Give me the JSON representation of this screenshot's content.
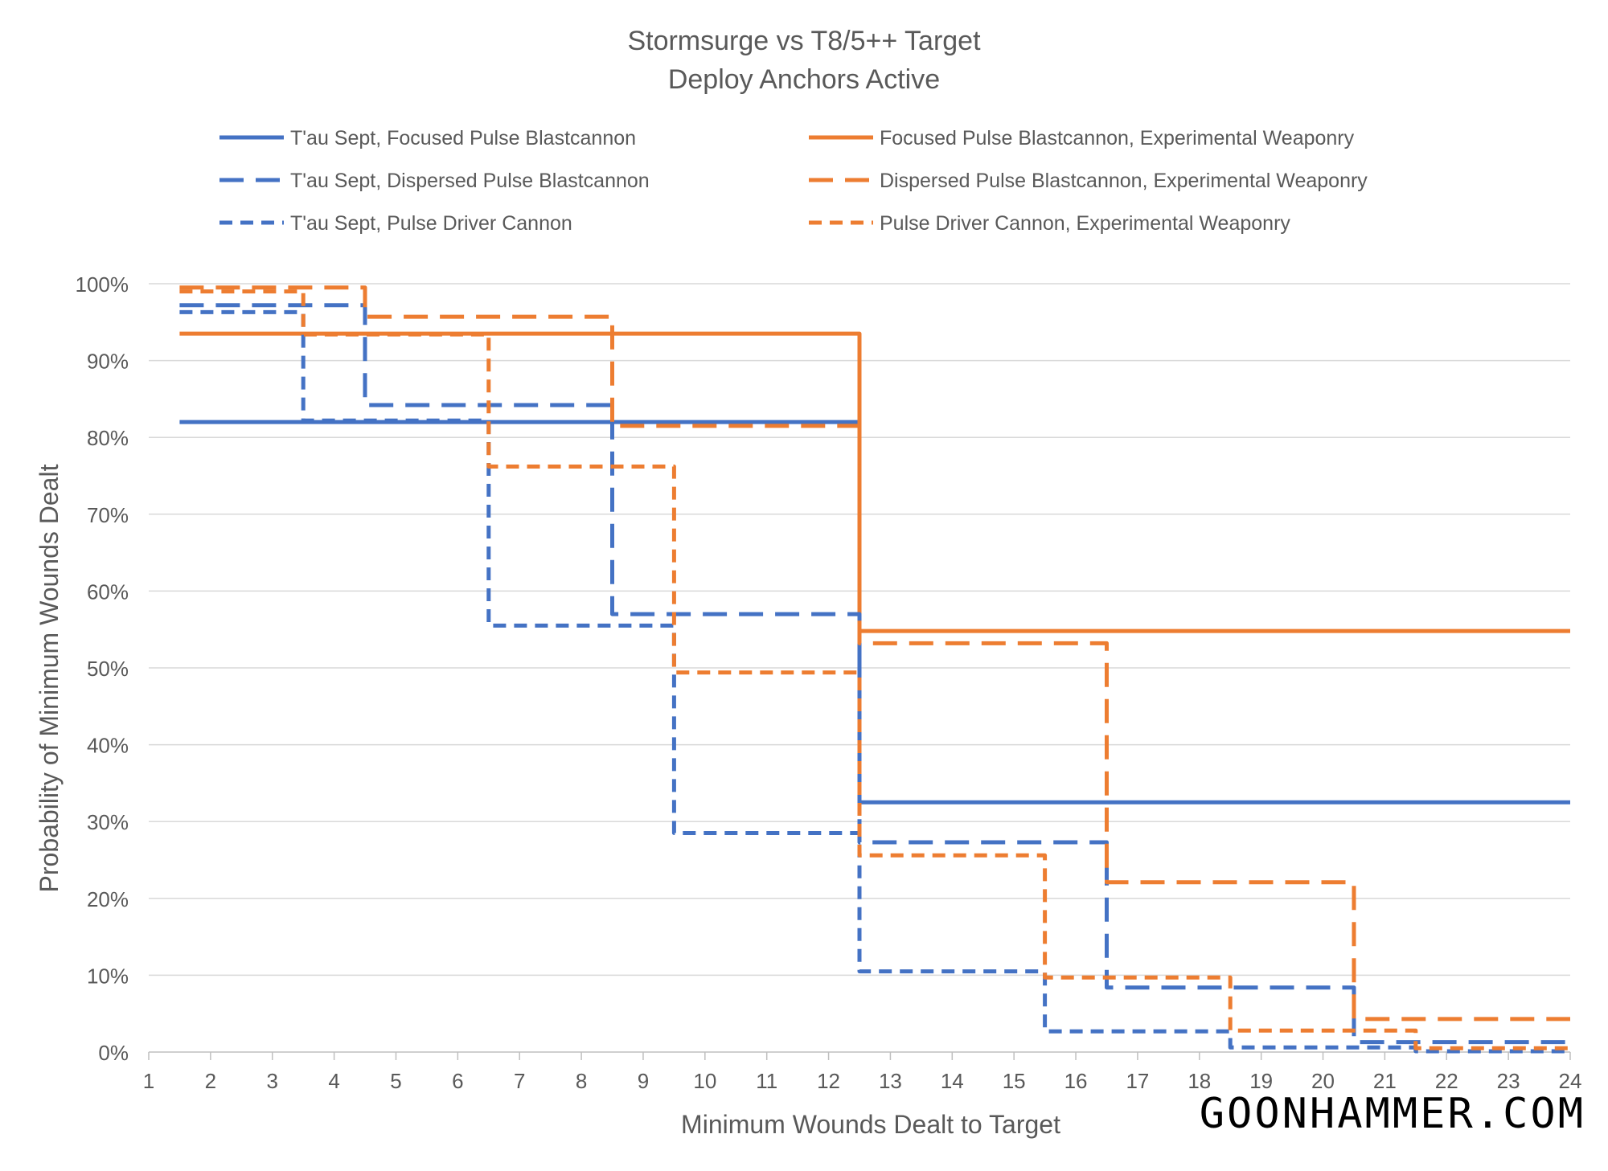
{
  "chart_data": {
    "type": "line",
    "title": "Stormsurge vs T8/5++ Target",
    "subtitle": "Deploy Anchors Active",
    "xlabel": "Minimum Wounds Dealt to Target",
    "ylabel": "Probability of Minimum Wounds Dealt",
    "x": [
      1,
      2,
      3,
      4,
      5,
      6,
      7,
      8,
      9,
      10,
      11,
      12,
      13,
      14,
      15,
      16,
      17,
      18,
      19,
      20,
      21,
      22,
      23,
      24
    ],
    "xlim": [
      1,
      24
    ],
    "ylim": [
      0,
      1
    ],
    "yticks": [
      0,
      0.1,
      0.2,
      0.3,
      0.4,
      0.5,
      0.6,
      0.7,
      0.8,
      0.9,
      1.0
    ],
    "ytick_labels": [
      "0%",
      "10%",
      "20%",
      "30%",
      "40%",
      "50%",
      "60%",
      "70%",
      "80%",
      "90%",
      "100%"
    ],
    "grid": "horizontal",
    "legend_position": "top",
    "series": [
      {
        "name": "T'au Sept, Focused Pulse Blastcannon",
        "color": "#4472C4",
        "dash": "solid",
        "values": [
          0.82,
          0.82,
          0.82,
          0.82,
          0.82,
          0.82,
          0.82,
          0.82,
          0.82,
          0.82,
          0.82,
          0.82,
          0.325,
          0.325,
          0.325,
          0.325,
          0.325,
          0.325,
          0.325,
          0.325,
          0.325,
          0.325,
          0.325,
          0.325
        ]
      },
      {
        "name": "Focused Pulse Blastcannon, Experimental Weaponry",
        "color": "#ED7D31",
        "dash": "solid",
        "values": [
          0.935,
          0.935,
          0.935,
          0.935,
          0.935,
          0.935,
          0.935,
          0.935,
          0.935,
          0.935,
          0.935,
          0.935,
          0.548,
          0.548,
          0.548,
          0.548,
          0.548,
          0.548,
          0.548,
          0.548,
          0.548,
          0.548,
          0.548,
          0.548
        ]
      },
      {
        "name": "T'au Sept, Dispersed Pulse Blastcannon",
        "color": "#4472C4",
        "dash": "long",
        "values": [
          0.972,
          0.972,
          0.972,
          0.972,
          0.842,
          0.842,
          0.842,
          0.842,
          0.57,
          0.57,
          0.57,
          0.57,
          0.273,
          0.273,
          0.273,
          0.273,
          0.084,
          0.084,
          0.084,
          0.084,
          0.013,
          0.013,
          0.013,
          0.013
        ]
      },
      {
        "name": "Dispersed Pulse Blastcannon, Experimental Weaponry",
        "color": "#ED7D31",
        "dash": "long",
        "values": [
          0.995,
          0.995,
          0.995,
          0.995,
          0.957,
          0.957,
          0.957,
          0.957,
          0.815,
          0.815,
          0.815,
          0.815,
          0.532,
          0.532,
          0.532,
          0.532,
          0.221,
          0.221,
          0.221,
          0.221,
          0.043,
          0.043,
          0.043,
          0.043
        ]
      },
      {
        "name": "T'au Sept, Pulse Driver Cannon",
        "color": "#4472C4",
        "dash": "short",
        "values": [
          0.963,
          0.963,
          0.963,
          0.822,
          0.822,
          0.822,
          0.555,
          0.555,
          0.555,
          0.285,
          0.285,
          0.285,
          0.105,
          0.105,
          0.105,
          0.027,
          0.027,
          0.027,
          0.006,
          0.006,
          0.006,
          0.001,
          0.001,
          0.001
        ]
      },
      {
        "name": "Pulse Driver Cannon, Experimental Weaponry",
        "color": "#ED7D31",
        "dash": "short",
        "values": [
          0.99,
          0.99,
          0.99,
          0.934,
          0.934,
          0.934,
          0.762,
          0.762,
          0.762,
          0.494,
          0.494,
          0.494,
          0.256,
          0.256,
          0.256,
          0.097,
          0.097,
          0.097,
          0.028,
          0.028,
          0.028,
          0.005,
          0.005,
          0.005
        ]
      }
    ]
  },
  "watermark": "GOONHAMMER.COM"
}
